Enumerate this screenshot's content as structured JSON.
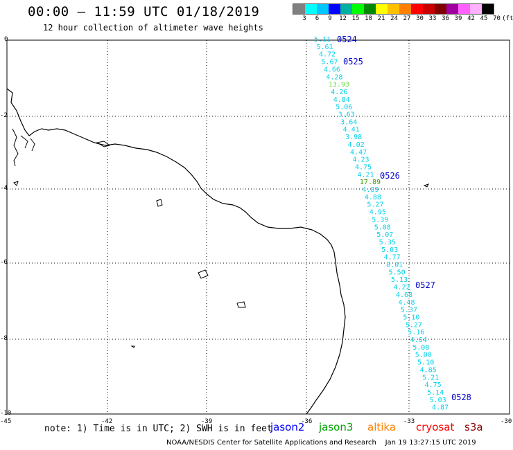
{
  "title": "00:00 – 11:59 UTC 01/18/2019",
  "subtitle": "12 hour collection of altimeter wave heights",
  "legend": {
    "labels": [
      "3",
      "6",
      "9",
      "12",
      "15",
      "18",
      "21",
      "24",
      "27",
      "30",
      "33",
      "36",
      "39",
      "42",
      "45",
      "70",
      "(ft)"
    ],
    "colors": [
      "#808080",
      "#00ffff",
      "#00c8ff",
      "#0000ff",
      "#00b0a0",
      "#00ff00",
      "#008800",
      "#ffff00",
      "#ffc000",
      "#ff8000",
      "#ff0000",
      "#c80000",
      "#800000",
      "#a000a0",
      "#ff60ff",
      "#ffb0ff",
      "#000000"
    ]
  },
  "axes": {
    "y_labels": [
      "0",
      "-2",
      "-4",
      "-6",
      "-8",
      "-10"
    ],
    "x_labels": [
      "-45",
      "-42",
      "-39",
      "-36",
      "-33",
      "-30"
    ]
  },
  "time_labels": [
    "0524",
    "0525",
    "0526",
    "0527",
    "0528"
  ],
  "wave_heights": [
    "5.11",
    "5.61",
    "4.72",
    "5.67",
    "4.66",
    "4.28",
    "13.93",
    "4.26",
    "4.84",
    "5.06",
    "3.63",
    "3.64",
    "4.41",
    "3.98",
    "4.02",
    "4.47",
    "4.23",
    "4.75",
    "4.21",
    "17.89",
    "4.89",
    "4.88",
    "5.27",
    "4.95",
    "5.39",
    "5.08",
    "5.07",
    "5.35",
    "5.03",
    "4.77",
    "8.01",
    "5.50",
    "5.13",
    "4.22",
    "4.68",
    "4.48",
    "5.37",
    "5.10",
    "5.27",
    "5.16",
    "4.64",
    "5.08",
    "5.00",
    "5.10",
    "4.85",
    "5.21",
    "4.75",
    "5.14",
    "5.03",
    "4.87"
  ],
  "wave_colors": [
    "cyan",
    "cyan",
    "cyan",
    "cyan",
    "cyan",
    "cyan",
    "lightgreen",
    "cyan",
    "cyan",
    "cyan",
    "cyan",
    "cyan",
    "cyan",
    "cyan",
    "cyan",
    "cyan",
    "cyan",
    "cyan",
    "cyan",
    "green",
    "cyan",
    "cyan",
    "cyan",
    "cyan",
    "cyan",
    "cyan",
    "cyan",
    "cyan",
    "cyan",
    "cyan",
    "cyan",
    "cyan",
    "cyan",
    "cyan",
    "cyan",
    "cyan",
    "cyan",
    "cyan",
    "cyan",
    "cyan",
    "cyan",
    "cyan",
    "cyan",
    "cyan",
    "cyan",
    "cyan",
    "cyan",
    "cyan",
    "cyan",
    "cyan"
  ],
  "note": "note: 1) Time is in UTC; 2) SWH is in feet",
  "satellites": [
    {
      "name": "jason2",
      "color": "#0000ff"
    },
    {
      "name": "jason3",
      "color": "#00a000"
    },
    {
      "name": "altika",
      "color": "#ff8000"
    },
    {
      "name": "cryosat",
      "color": "#ff0000"
    },
    {
      "name": "s3a",
      "color": "#800000"
    }
  ],
  "footer": "NOAA/NESDIS Center for Satellite Applications and Research    Jan 19 13:27:15 UTC 2019"
}
